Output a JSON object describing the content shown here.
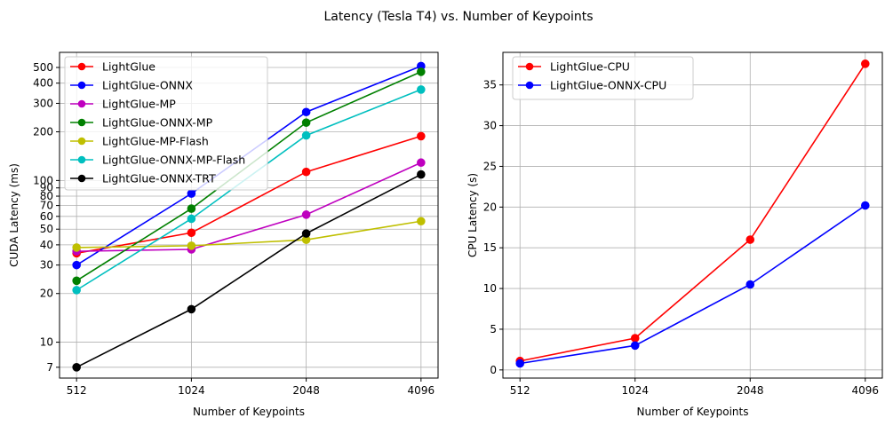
{
  "figure": {
    "title": "Latency (Tesla T4) vs. Number of Keypoints"
  },
  "chart_data": [
    {
      "type": "line",
      "xlabel": "Number of Keypoints",
      "ylabel": "CUDA Latency (ms)",
      "yscale": "log",
      "ylim": [
        6,
        620
      ],
      "categories": [
        "512",
        "1024",
        "2048",
        "4096"
      ],
      "yticks": [
        7,
        10,
        20,
        30,
        40,
        50,
        60,
        70,
        80,
        90,
        100,
        200,
        300,
        400,
        500
      ],
      "grid": true,
      "legend_position": "top-left",
      "series": [
        {
          "name": "LightGlue",
          "color": "#ff0000",
          "values": [
            35.5,
            47.5,
            113,
            188
          ]
        },
        {
          "name": "LightGlue-ONNX",
          "color": "#0000ff",
          "values": [
            30,
            83,
            265,
            510
          ]
        },
        {
          "name": "LightGlue-MP",
          "color": "#bf00bf",
          "values": [
            36.5,
            37.5,
            61.5,
            129
          ]
        },
        {
          "name": "LightGlue-ONNX-MP",
          "color": "#008000",
          "values": [
            24,
            67,
            228,
            470
          ]
        },
        {
          "name": "LightGlue-MP-Flash",
          "color": "#bfbf00",
          "values": [
            38.5,
            39.5,
            43,
            56
          ]
        },
        {
          "name": "LightGlue-ONNX-MP-Flash",
          "color": "#00bfbf",
          "values": [
            21,
            58,
            190,
            365
          ]
        },
        {
          "name": "LightGlue-ONNX-TRT",
          "color": "#000000",
          "values": [
            7,
            16,
            47,
            109
          ]
        }
      ]
    },
    {
      "type": "line",
      "xlabel": "Number of Keypoints",
      "ylabel": "CPU Latency (s)",
      "yscale": "linear",
      "ylim": [
        -1,
        39
      ],
      "categories": [
        "512",
        "1024",
        "2048",
        "4096"
      ],
      "yticks": [
        0,
        5,
        10,
        15,
        20,
        25,
        30,
        35
      ],
      "grid": true,
      "legend_position": "top-left",
      "series": [
        {
          "name": "LightGlue-CPU",
          "color": "#ff0000",
          "values": [
            1.1,
            3.9,
            16.0,
            37.6
          ]
        },
        {
          "name": "LightGlue-ONNX-CPU",
          "color": "#0000ff",
          "values": [
            0.8,
            3.0,
            10.5,
            20.2
          ]
        }
      ]
    }
  ]
}
